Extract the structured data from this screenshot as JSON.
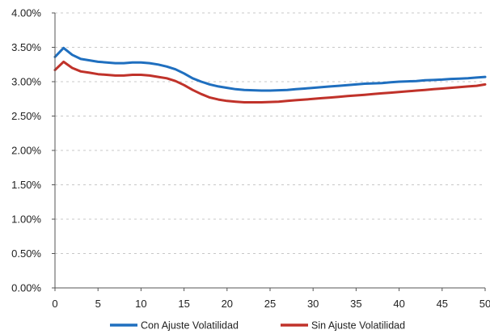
{
  "chart_data": {
    "type": "line",
    "title": "",
    "xlabel": "",
    "ylabel": "",
    "xlim": [
      0,
      50
    ],
    "ylim": [
      0,
      4.0
    ],
    "x_ticks": [
      0,
      5,
      10,
      15,
      20,
      25,
      30,
      35,
      40,
      45,
      50
    ],
    "x_tick_labels": [
      "0",
      "5",
      "10",
      "15",
      "20",
      "25",
      "30",
      "35",
      "40",
      "45",
      "50"
    ],
    "y_ticks": [
      0,
      0.5,
      1.0,
      1.5,
      2.0,
      2.5,
      3.0,
      3.5,
      4.0
    ],
    "y_tick_labels": [
      "0.00%",
      "0.50%",
      "1.00%",
      "1.50%",
      "2.00%",
      "2.50%",
      "3.00%",
      "3.50%",
      "4.00%"
    ],
    "grid": "horizontal, dashed",
    "legend_position": "bottom",
    "x": [
      0,
      1,
      2,
      3,
      4,
      5,
      6,
      7,
      8,
      9,
      10,
      11,
      12,
      13,
      14,
      15,
      16,
      17,
      18,
      19,
      20,
      21,
      22,
      23,
      24,
      25,
      26,
      27,
      28,
      29,
      30,
      31,
      32,
      33,
      34,
      35,
      36,
      37,
      38,
      39,
      40,
      41,
      42,
      43,
      44,
      45,
      46,
      47,
      48,
      49,
      50
    ],
    "series": [
      {
        "name": "Con Ajuste Volatilidad",
        "color": "#1f6fbf",
        "values": [
          3.36,
          3.49,
          3.39,
          3.33,
          3.31,
          3.29,
          3.28,
          3.27,
          3.27,
          3.28,
          3.28,
          3.27,
          3.25,
          3.22,
          3.18,
          3.12,
          3.05,
          3.0,
          2.96,
          2.93,
          2.91,
          2.89,
          2.88,
          2.875,
          2.87,
          2.87,
          2.875,
          2.88,
          2.89,
          2.9,
          2.91,
          2.92,
          2.93,
          2.94,
          2.95,
          2.96,
          2.97,
          2.975,
          2.98,
          2.99,
          3.0,
          3.005,
          3.01,
          3.02,
          3.025,
          3.03,
          3.04,
          3.045,
          3.05,
          3.06,
          3.07
        ]
      },
      {
        "name": "Sin Ajuste Volatilidad",
        "color": "#c0322a",
        "values": [
          3.17,
          3.29,
          3.2,
          3.15,
          3.13,
          3.11,
          3.1,
          3.09,
          3.09,
          3.1,
          3.1,
          3.09,
          3.07,
          3.05,
          3.01,
          2.95,
          2.88,
          2.82,
          2.77,
          2.74,
          2.72,
          2.71,
          2.7,
          2.7,
          2.7,
          2.705,
          2.71,
          2.72,
          2.73,
          2.74,
          2.75,
          2.76,
          2.77,
          2.78,
          2.79,
          2.8,
          2.81,
          2.82,
          2.83,
          2.84,
          2.85,
          2.86,
          2.87,
          2.88,
          2.89,
          2.9,
          2.91,
          2.92,
          2.93,
          2.94,
          2.96
        ]
      }
    ]
  }
}
